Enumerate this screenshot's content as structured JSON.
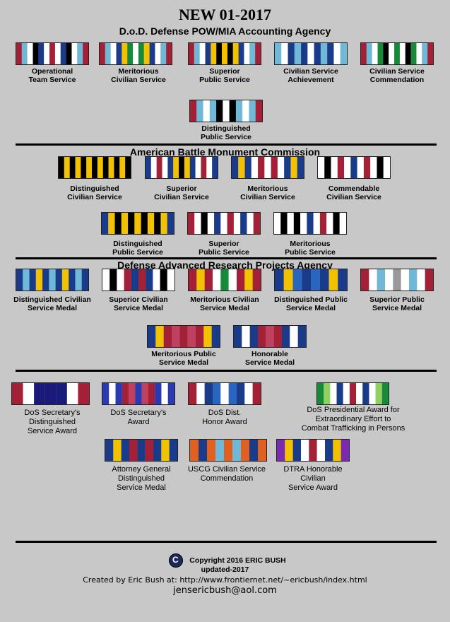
{
  "header": {
    "title": "NEW 01-2017",
    "sections": [
      "D.o.D. Defense POW/MIA Accounting Agency",
      "American Battle Monument Commission",
      "Defense Advanced Research Projects Agency"
    ]
  },
  "ribbons": [
    {
      "label": "Operational\nTeam Service",
      "stripes": [
        "#a32036",
        "#6fb8d8",
        "#ffffff",
        "#000000",
        "#1a3a8a",
        "#ffffff",
        "#a32036",
        "#ffffff",
        "#1a3a8a",
        "#000000",
        "#ffffff",
        "#6fb8d8",
        "#a32036"
      ]
    },
    {
      "label": "Meritorious\nCivilian Service",
      "stripes": [
        "#a32036",
        "#6fb8d8",
        "#ffffff",
        "#1a3a8a",
        "#f2c200",
        "#178a3a",
        "#ffffff",
        "#178a3a",
        "#f2c200",
        "#1a3a8a",
        "#ffffff",
        "#6fb8d8",
        "#a32036"
      ]
    },
    {
      "label": "Superior\nPublic Service",
      "stripes": [
        "#a32036",
        "#6fb8d8",
        "#ffffff",
        "#1a3a8a",
        "#f2c200",
        "#000000",
        "#f2c200",
        "#000000",
        "#f2c200",
        "#1a3a8a",
        "#ffffff",
        "#6fb8d8",
        "#a32036"
      ]
    },
    {
      "label": "Civilian Service\nAchievement",
      "stripes": [
        "#6fb8d8",
        "#ffffff",
        "#1a3a8a",
        "#6fb8d8",
        "#1a3a8a",
        "#ffffff",
        "#1a3a8a",
        "#6fb8d8",
        "#1a3a8a",
        "#ffffff",
        "#6fb8d8"
      ]
    },
    {
      "label": "Civilian Service\nCommendation",
      "stripes": [
        "#a32036",
        "#6fb8d8",
        "#ffffff",
        "#178a3a",
        "#000000",
        "#ffffff",
        "#178a3a",
        "#ffffff",
        "#000000",
        "#178a3a",
        "#ffffff",
        "#6fb8d8",
        "#a32036"
      ]
    },
    {
      "label": "Distinguished\nPublic Service",
      "stripes": [
        "#a32036",
        "#6fb8d8",
        "#ffffff",
        "#6fb8d8",
        "#000000",
        "#ffffff",
        "#000000",
        "#6fb8d8",
        "#ffffff",
        "#6fb8d8",
        "#a32036"
      ]
    },
    {
      "label": "Distinguished\nCivilian Service",
      "stripes": [
        "#000000",
        "#f2c200",
        "#000000",
        "#f2c200",
        "#000000",
        "#f2c200",
        "#000000",
        "#f2c200",
        "#000000",
        "#f2c200",
        "#000000",
        "#f2c200",
        "#000000"
      ]
    },
    {
      "label": "Superior\nCivilian Service",
      "stripes": [
        "#1a3a8a",
        "#ffffff",
        "#a32036",
        "#ffffff",
        "#1a3a8a",
        "#f2c200",
        "#000000",
        "#f2c200",
        "#1a3a8a",
        "#ffffff",
        "#a32036",
        "#ffffff",
        "#1a3a8a"
      ]
    },
    {
      "label": "Meritorious\nCivilian Service",
      "stripes": [
        "#1a3a8a",
        "#f2c200",
        "#1a3a8a",
        "#ffffff",
        "#a32036",
        "#ffffff",
        "#a32036",
        "#ffffff",
        "#1a3a8a",
        "#f2c200",
        "#1a3a8a"
      ]
    },
    {
      "label": "Commendable\nCivilian Service",
      "stripes": [
        "#ffffff",
        "#000000",
        "#ffffff",
        "#a32036",
        "#ffffff",
        "#1a3a8a",
        "#ffffff",
        "#a32036",
        "#ffffff",
        "#000000",
        "#ffffff"
      ]
    },
    {
      "label": "Distinguished\nPublic Service",
      "stripes": [
        "#1a3a8a",
        "#f2c200",
        "#000000",
        "#f2c200",
        "#000000",
        "#f2c200",
        "#000000",
        "#f2c200",
        "#000000",
        "#f2c200",
        "#1a3a8a"
      ]
    },
    {
      "label": "Superior\nPublic Service",
      "stripes": [
        "#a32036",
        "#ffffff",
        "#000000",
        "#ffffff",
        "#1a3a8a",
        "#ffffff",
        "#a32036",
        "#ffffff",
        "#1a3a8a",
        "#ffffff",
        "#a32036"
      ]
    },
    {
      "label": "Meritorious\nPublic Service",
      "stripes": [
        "#ffffff",
        "#000000",
        "#ffffff",
        "#000000",
        "#ffffff",
        "#1a3a8a",
        "#ffffff",
        "#a32036",
        "#ffffff",
        "#000000",
        "#ffffff"
      ]
    },
    {
      "label": "Distinguished Civilian\nService Medal",
      "stripes": [
        "#1a3a8a",
        "#6fb8d8",
        "#1a3a8a",
        "#f2c200",
        "#1a3a8a",
        "#6fb8d8",
        "#1a3a8a",
        "#f2c200",
        "#1a3a8a",
        "#6fb8d8",
        "#1a3a8a"
      ]
    },
    {
      "label": "Superior Civilian\nService Medal",
      "stripes": [
        "#ffffff",
        "#000000",
        "#ffffff",
        "#a32036",
        "#1a3a8a",
        "#a32036",
        "#1a3a8a",
        "#ffffff",
        "#000000",
        "#ffffff"
      ]
    },
    {
      "label": "Meritorious Civilian\nService Medal",
      "stripes": [
        "#a32036",
        "#f2c200",
        "#a32036",
        "#ffffff",
        "#178a3a",
        "#ffffff",
        "#a32036",
        "#f2c200",
        "#a32036"
      ]
    },
    {
      "label": "Distinguished Public\nService Medal",
      "stripes": [
        "#1a3a8a",
        "#f2c200",
        "#2a66c0",
        "#1a3a8a",
        "#2a66c0",
        "#1a3a8a",
        "#f2c200",
        "#1a3a8a"
      ]
    },
    {
      "label": "Superior Public\nService Medal",
      "stripes": [
        "#a32036",
        "#ffffff",
        "#6fb8d8",
        "#ffffff",
        "#999999",
        "#ffffff",
        "#6fb8d8",
        "#ffffff",
        "#a32036"
      ]
    },
    {
      "label": "Meritorious Public\nService Medal",
      "stripes": [
        "#1a3a8a",
        "#f2c200",
        "#a32036",
        "#c04060",
        "#a32036",
        "#c04060",
        "#a32036",
        "#f2c200",
        "#1a3a8a"
      ]
    },
    {
      "label": "Honorable\nService Medal",
      "stripes": [
        "#1a3a8a",
        "#ffffff",
        "#1a3a8a",
        "#a32036",
        "#c04060",
        "#a32036",
        "#1a3a8a",
        "#ffffff",
        "#1a3a8a"
      ]
    },
    {
      "label": "DoS Secretary's\nDistinguished\nService Award",
      "stripes": [
        "#a32036",
        "#ffffff",
        "#1a1a7a",
        "#1a1a7a",
        "#1a1a7a",
        "#ffffff",
        "#a32036"
      ]
    },
    {
      "label": "DoS Secretary's\nAward",
      "stripes": [
        "#2a3ab0",
        "#ffffff",
        "#2a3ab0",
        "#a32036",
        "#c04060",
        "#2a3ab0",
        "#c04060",
        "#a32036",
        "#2a3ab0",
        "#ffffff",
        "#2a3ab0"
      ]
    },
    {
      "label": "DoS Dist.\nHonor Award",
      "stripes": [
        "#a32036",
        "#ffffff",
        "#1a3a8a",
        "#2a66c0",
        "#ffffff",
        "#2a66c0",
        "#1a3a8a",
        "#ffffff",
        "#a32036"
      ]
    },
    {
      "label": "DoS Presidential Award for\nExtraordinary Effort to\nCombat Trafficking in Persons",
      "stripes": [
        "#178a3a",
        "#8fd060",
        "#ffffff",
        "#1a3a8a",
        "#ffffff",
        "#a32036",
        "#ffffff",
        "#1a3a8a",
        "#ffffff",
        "#8fd060",
        "#178a3a"
      ]
    },
    {
      "label": "Attorney General\nDistinguished\nService Medal",
      "stripes": [
        "#1a3a8a",
        "#f2c200",
        "#1a3a8a",
        "#a32036",
        "#1a3a8a",
        "#a32036",
        "#1a3a8a",
        "#f2c200",
        "#1a3a8a"
      ]
    },
    {
      "label": "USCG Civilian Service\nCommendation",
      "stripes": [
        "#e06020",
        "#1a3a8a",
        "#e06020",
        "#6fb8d8",
        "#e06020",
        "#6fb8d8",
        "#e06020",
        "#1a3a8a",
        "#e06020"
      ]
    },
    {
      "label": "DTRA Honorable\nCivilian\nService Award",
      "stripes": [
        "#7a2ab0",
        "#f2c200",
        "#1a3a8a",
        "#ffffff",
        "#a32036",
        "#ffffff",
        "#1a3a8a",
        "#f2c200",
        "#7a2ab0"
      ]
    }
  ],
  "footer": {
    "copyright": "Copyright 2016 ERIC BUSH",
    "updated": "updated-2017",
    "created": "Created by Eric Bush at: http://www.frontiernet.net/~ericbush/index.html",
    "email": "jensericbush@aol.com"
  }
}
